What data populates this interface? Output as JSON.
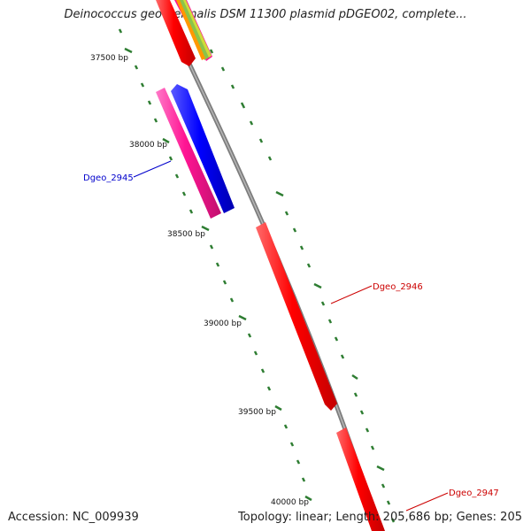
{
  "title": "Deinococcus geothermalis DSM 11300 plasmid pDGEO02, complete...",
  "accession": "Accession: NC_009939",
  "summary": "Topology: linear; Length: 205,686 bp; Genes: 205",
  "ruler": {
    "ticks": [
      "37500 bp",
      "38000 bp",
      "38500 bp",
      "39000 bp",
      "39500 bp",
      "40000 bp"
    ]
  },
  "gene_labels": [
    {
      "name": "Dgeo_2945",
      "color": "#0000cc"
    },
    {
      "name": "Dgeo_2946",
      "color": "#cc0000"
    },
    {
      "name": "Dgeo_2947",
      "color": "#cc0000"
    }
  ],
  "colors": {
    "backbone": "#8a8a8a",
    "tick": "#2e7d32",
    "red": "#ff0000",
    "blue": "#0000ff",
    "magenta": "#ff1493"
  }
}
